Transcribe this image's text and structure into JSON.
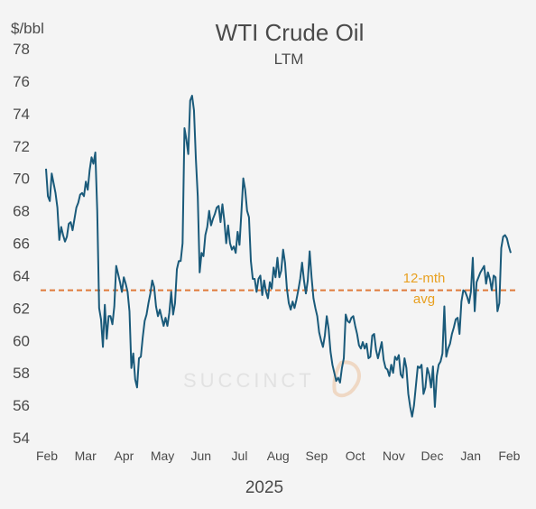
{
  "chart_data": {
    "type": "line",
    "title": "WTI Crude Oil",
    "subtitle": "LTM",
    "ylabel": "$/bbl",
    "xlabel": "2025",
    "ylim": [
      54,
      78
    ],
    "yticks": [
      54,
      56,
      58,
      60,
      62,
      64,
      66,
      68,
      70,
      72,
      74,
      76,
      78
    ],
    "x_tick_labels": [
      "Feb",
      "Mar",
      "Apr",
      "May",
      "Jun",
      "Jul",
      "Aug",
      "Sep",
      "Oct",
      "Nov",
      "Dec",
      "Jan",
      "Feb"
    ],
    "grid": false,
    "line_color": "#1a5a7a",
    "series": [
      {
        "values": [
          70.6,
          68.9,
          68.6,
          70.3,
          69.7,
          69.1,
          68.2,
          66.2,
          67.0,
          66.5,
          66.1,
          66.4,
          67.2,
          67.3,
          66.8,
          67.5,
          68.2,
          68.5,
          69.0,
          69.1,
          68.9,
          69.8,
          69.3,
          70.5,
          71.3,
          70.9,
          71.6,
          68.0,
          62.0,
          61.3,
          59.6,
          62.2,
          60.1,
          61.5,
          61.5,
          61.0,
          62.1,
          64.6,
          64.1,
          63.6,
          63.0,
          63.9,
          63.5,
          63.0,
          61.8,
          58.3,
          59.2,
          57.6,
          57.1,
          58.9,
          59.0,
          60.2,
          61.2,
          61.6,
          62.3,
          62.9,
          63.7,
          63.3,
          62.1,
          61.5,
          61.9,
          61.4,
          60.9,
          61.4,
          60.9,
          61.7,
          63.0,
          61.6,
          62.3,
          64.4,
          64.9,
          64.9,
          66.0,
          73.1,
          72.4,
          71.5,
          74.8,
          75.1,
          74.2,
          71.2,
          68.9,
          64.2,
          65.4,
          65.2,
          66.5,
          67.0,
          68.0,
          67.1,
          67.5,
          67.8,
          68.2,
          68.3,
          67.3,
          68.4,
          67.4,
          66.0,
          67.1,
          66.0,
          65.6,
          65.8,
          65.4,
          66.7,
          65.9,
          67.9,
          70.0,
          69.3,
          68.0,
          67.6,
          64.9,
          63.8,
          63.8,
          63.0,
          63.8,
          64.0,
          62.8,
          63.7,
          63.0,
          62.6,
          63.6,
          63.2,
          64.5,
          63.9,
          65.1,
          63.9,
          64.3,
          65.6,
          64.8,
          63.2,
          62.3,
          61.9,
          62.4,
          62.0,
          62.5,
          63.1,
          63.8,
          64.8,
          63.7,
          62.9,
          63.7,
          65.5,
          63.9,
          62.6,
          62.0,
          61.5,
          60.5,
          60.0,
          59.6,
          60.3,
          61.5,
          60.7,
          59.3,
          58.5,
          58.0,
          57.5,
          57.7,
          57.4,
          58.3,
          58.9,
          61.6,
          61.2,
          61.1,
          61.4,
          61.5,
          60.9,
          60.4,
          59.7,
          59.5,
          59.9,
          59.5,
          59.8,
          58.9,
          59.0,
          60.3,
          60.4,
          59.4,
          58.9,
          59.4,
          59.9,
          58.8,
          58.3,
          58.2,
          57.8,
          58.5,
          58.0,
          59.0,
          58.8,
          59.1,
          57.9,
          57.7,
          58.9,
          58.3,
          56.7,
          55.9,
          55.3,
          56.0,
          57.2,
          58.4,
          58.3,
          58.5,
          56.7,
          57.1,
          58.3,
          57.9,
          57.1,
          58.4,
          55.9,
          57.8,
          58.5,
          58.7,
          59.2,
          62.1,
          59.0,
          59.5,
          59.8,
          60.4,
          60.8,
          61.3,
          61.4,
          60.4,
          62.4,
          63.1,
          63.0,
          62.7,
          62.3,
          63.0,
          65.1,
          61.8,
          63.6,
          63.9,
          64.2,
          64.4,
          64.6,
          63.5,
          64.2,
          63.8,
          63.1,
          64.0,
          63.9,
          61.8,
          62.3,
          65.7,
          66.4,
          66.5,
          66.3,
          65.8,
          65.4
        ]
      }
    ],
    "reference_line": {
      "label": "12-mth avg",
      "value": 63.1,
      "color": "#e07a3a"
    },
    "watermark": "SUCCINCT"
  }
}
